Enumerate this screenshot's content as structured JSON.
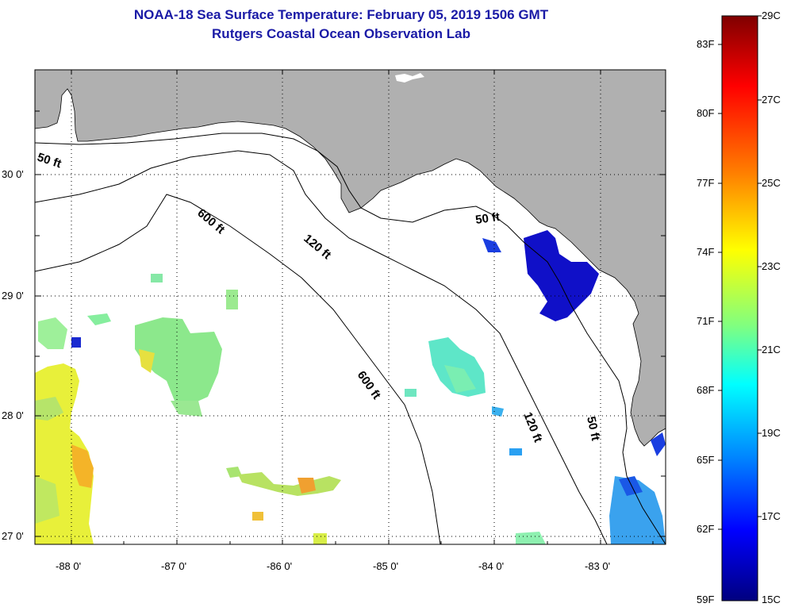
{
  "header": {
    "title": "NOAA-18 Sea Surface Temperature:  February 05, 2019 1506 GMT",
    "subtitle": "Rutgers Coastal Ocean Observation Lab"
  },
  "map": {
    "lat_labels": [
      "30 0'",
      "29 0'",
      "28 0'",
      "27 0'"
    ],
    "lon_labels": [
      "-88 0'",
      "-87 0'",
      "-86 0'",
      "-85 0'",
      "-84 0'",
      "-83 0'"
    ],
    "contours": {
      "ft50": "50 ft",
      "ft120": "120 ft",
      "ft600": "600 ft"
    }
  },
  "colorbar": {
    "f_labels": [
      "83F",
      "80F",
      "77F",
      "74F",
      "71F",
      "68F",
      "65F",
      "62F",
      "59F"
    ],
    "c_labels": [
      "29C",
      "27C",
      "25C",
      "23C",
      "21C",
      "19C",
      "17C",
      "15C"
    ],
    "stops": [
      "#7f0000",
      "#ff0000",
      "#ff8000",
      "#ffff00",
      "#80ff80",
      "#00ffff",
      "#0080ff",
      "#0000ff",
      "#00007f"
    ]
  },
  "colors": {
    "land": "#b0b0b0",
    "ocean": "#ffffff",
    "title": "#1a1aa6"
  }
}
